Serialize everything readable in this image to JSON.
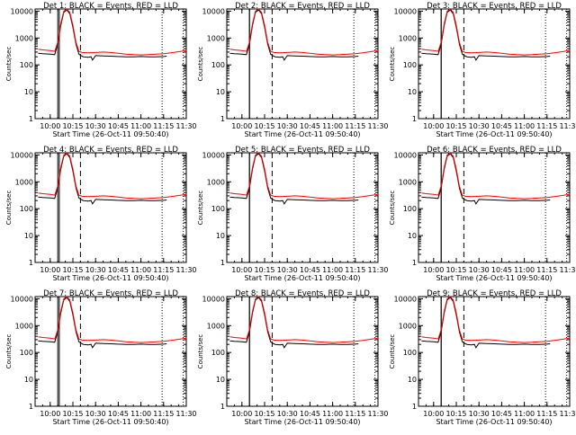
{
  "chart_data": {
    "type": "line",
    "panels": [
      {
        "title": "Det 1:  BLACK = Events, RED = LLD",
        "spike_start": "10:06"
      },
      {
        "title": "Det 2:  BLACK = Events, RED = LLD",
        "spike_start": "10:05"
      },
      {
        "title": "Det 3:  BLACK = Events, RED = LLD",
        "spike_start": "10:05"
      },
      {
        "title": "Det 4:  BLACK = Events, RED = LLD",
        "spike_start": "10:06"
      },
      {
        "title": "Det 5:  BLACK = Events, RED = LLD",
        "spike_start": "10:05"
      },
      {
        "title": "Det 6:  BLACK = Events, RED = LLD",
        "spike_start": "10:05"
      },
      {
        "title": "Det 7:  BLACK = Events, RED = LLD",
        "spike_start": "10:06"
      },
      {
        "title": "Det 8:  BLACK = Events, RED = LLD",
        "spike_start": "10:05"
      },
      {
        "title": "Det 9:  BLACK = Events, RED = LLD",
        "spike_start": "10:05"
      }
    ],
    "xlabel": "Start Time (26-Oct-11 09:50:40)",
    "ylabel": "Counts/sec",
    "x_ticks": [
      "10:00",
      "10:15",
      "10:30",
      "10:45",
      "11:00",
      "11:15",
      "11:30"
    ],
    "x_range": [
      "09:50",
      "11:30"
    ],
    "y_ticks": [
      "1",
      "10",
      "100",
      "1000",
      "10000"
    ],
    "y_range": [
      1,
      12000
    ],
    "y_scale": "log",
    "series": [
      {
        "name": "BLACK = Events",
        "color": "#000000",
        "x": [
          "09:52",
          "09:55",
          "10:00",
          "10:03",
          "10:05",
          "10:07",
          "10:09",
          "10:11",
          "10:13",
          "10:15",
          "10:17",
          "10:19",
          "10:21",
          "10:22",
          "10:25",
          "10:27",
          "10:28",
          "10:30",
          "10:35",
          "10:40",
          "10:45",
          "10:50",
          "10:55",
          "11:00",
          "11:05",
          "11:10",
          "11:15",
          "11:17"
        ],
        "values": [
          270,
          260,
          250,
          240,
          600,
          3000,
          9000,
          11000,
          8000,
          2500,
          600,
          250,
          210,
          200,
          190,
          200,
          150,
          220,
          215,
          210,
          205,
          200,
          200,
          205,
          200,
          200,
          205,
          210
        ]
      },
      {
        "name": "RED = LLD",
        "color": "#ff0000",
        "x": [
          "09:52",
          "09:55",
          "10:00",
          "10:03",
          "10:05",
          "10:07",
          "10:09",
          "10:11",
          "10:13",
          "10:15",
          "10:17",
          "10:19",
          "10:21",
          "10:25",
          "10:30",
          "10:35",
          "10:40",
          "10:45",
          "10:50",
          "10:55",
          "11:00",
          "11:05",
          "11:10",
          "11:15",
          "11:20",
          "11:25",
          "11:30"
        ],
        "values": [
          380,
          360,
          340,
          320,
          700,
          3500,
          10000,
          12000,
          9000,
          3000,
          700,
          320,
          290,
          280,
          290,
          300,
          290,
          270,
          250,
          240,
          235,
          240,
          250,
          260,
          280,
          310,
          340
        ]
      }
    ],
    "vertical_markers": {
      "solid": [
        "10:05"
      ],
      "dashed": [
        "10:20"
      ],
      "dotted": [
        "11:14",
        "11:28"
      ]
    },
    "grid": false,
    "legend": "in title"
  }
}
